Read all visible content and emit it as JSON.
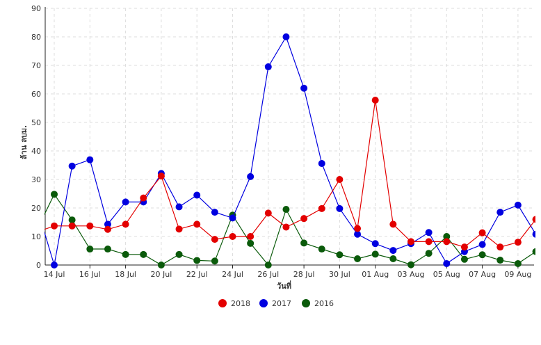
{
  "chart_data": {
    "type": "line",
    "xlabel": "วันที่",
    "ylabel": "ล้าน ลบม.",
    "ylim": [
      0,
      90
    ],
    "yticks": [
      0,
      10,
      20,
      30,
      40,
      50,
      60,
      70,
      80,
      90
    ],
    "grid": true,
    "legend_position": "bottom",
    "x_start": "13 Jul",
    "x_end": "11 Aug",
    "x_tick_labels": [
      "14 Jul",
      "16 Jul",
      "18 Jul",
      "20 Jul",
      "22 Jul",
      "24 Jul",
      "26 Jul",
      "28 Jul",
      "30 Jul",
      "01 Aug",
      "03 Aug",
      "05 Aug",
      "07 Aug",
      "09 Aug"
    ],
    "x": [
      "13 Jul",
      "14 Jul",
      "15 Jul",
      "16 Jul",
      "17 Jul",
      "18 Jul",
      "19 Jul",
      "20 Jul",
      "21 Jul",
      "22 Jul",
      "23 Jul",
      "24 Jul",
      "25 Jul",
      "26 Jul",
      "27 Jul",
      "28 Jul",
      "29 Jul",
      "30 Jul",
      "31 Jul",
      "01 Aug",
      "02 Aug",
      "03 Aug",
      "04 Aug",
      "05 Aug",
      "06 Aug",
      "07 Aug",
      "08 Aug",
      "09 Aug",
      "10 Aug",
      "11 Aug"
    ],
    "series": [
      {
        "name": "2018",
        "color": "#e30000",
        "values": [
          11.5,
          13.7,
          13.7,
          13.7,
          12.5,
          14.3,
          23.5,
          31.2,
          12.6,
          14.3,
          9.0,
          10.0,
          10.0,
          18.2,
          13.3,
          16.3,
          19.8,
          30.0,
          12.8,
          57.8,
          14.3,
          8.2,
          8.2,
          8.2,
          6.3,
          11.3,
          6.3,
          8.0,
          16.0,
          null
        ]
      },
      {
        "name": "2017",
        "color": "#0000e0",
        "values": [
          20.8,
          0.0,
          34.7,
          36.9,
          14.3,
          22.1,
          22.1,
          32.1,
          20.4,
          24.5,
          18.5,
          16.5,
          31.0,
          69.5,
          80.0,
          62.0,
          35.6,
          19.8,
          10.8,
          7.5,
          5.1,
          7.5,
          11.4,
          0.5,
          4.7,
          7.2,
          18.5,
          21.0,
          10.8,
          null
        ]
      },
      {
        "name": "2016",
        "color": "#0a5a0a",
        "values": [
          12.0,
          24.8,
          15.8,
          5.6,
          5.6,
          3.7,
          3.7,
          0.0,
          3.7,
          1.6,
          1.4,
          17.5,
          7.6,
          0.0,
          19.5,
          7.7,
          5.6,
          3.6,
          2.2,
          3.8,
          2.2,
          0.1,
          4.1,
          10.0,
          2.0,
          3.6,
          1.7,
          0.5,
          4.7,
          null
        ]
      }
    ]
  }
}
